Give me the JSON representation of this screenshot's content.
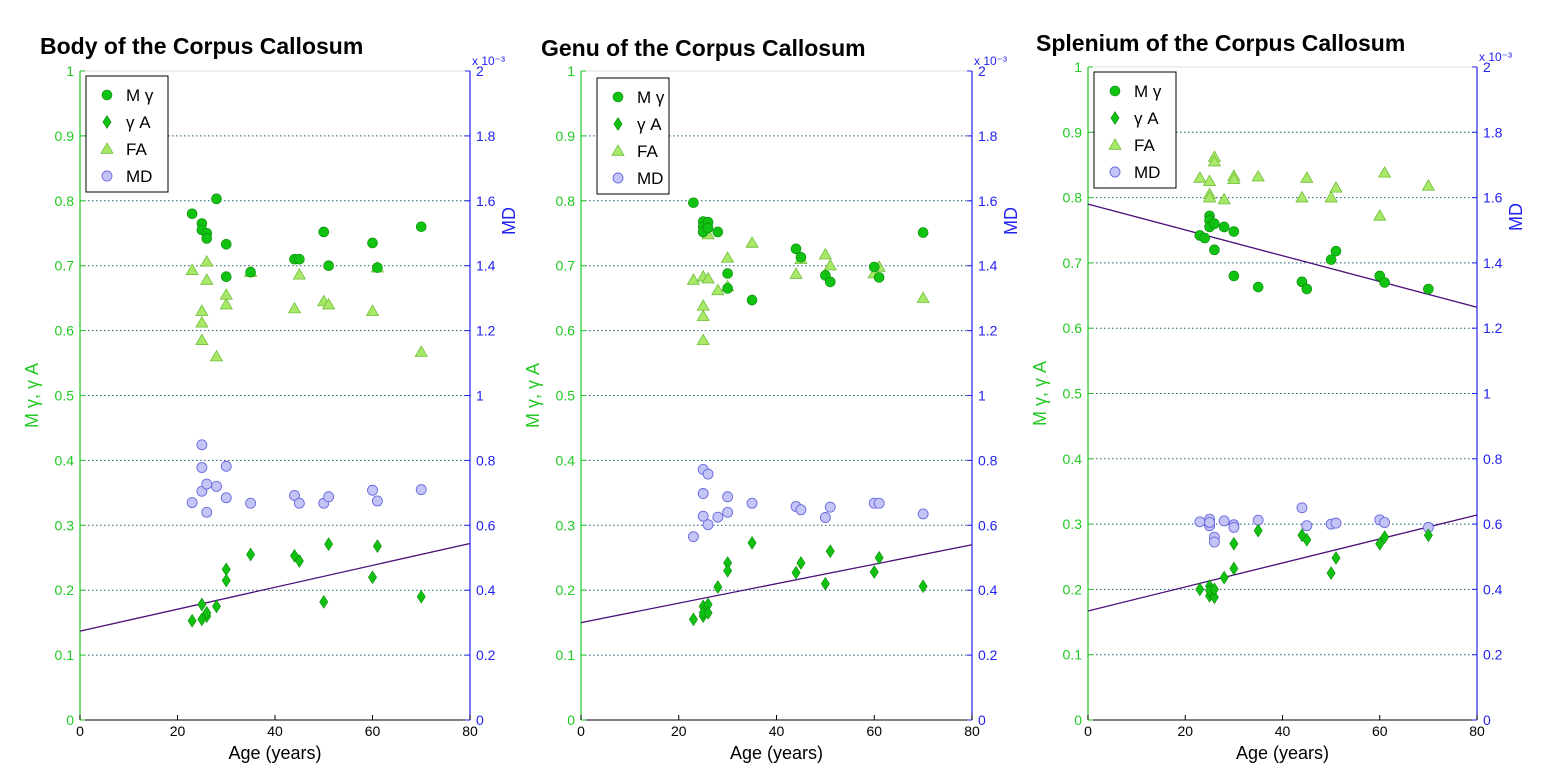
{
  "chart_data": [
    {
      "type": "scatter",
      "title": "Body of the Corpus Callosum",
      "xlabel": "Age (years)",
      "ylabel": "M γ, γ A",
      "ylabel_right": "MD",
      "right_exponent": "x 10⁻³",
      "xlim": [
        0,
        80
      ],
      "ylim": [
        0,
        1
      ],
      "ylim_right": [
        0,
        2
      ],
      "xticks": [
        "0",
        "20",
        "40",
        "60",
        "80"
      ],
      "yticks": [
        "0",
        "0.1",
        "0.2",
        "0.3",
        "0.4",
        "0.5",
        "0.6",
        "0.7",
        "0.8",
        "0.9",
        "1"
      ],
      "yticks_right": [
        "0",
        "0.2",
        "0.4",
        "0.6",
        "0.8",
        "1",
        "1.2",
        "1.4",
        "1.6",
        "1.8",
        "2"
      ],
      "grid": "horizontal-dotted",
      "legend_position": "top-left",
      "legend": [
        "M γ",
        "γ A",
        "FA",
        "MD"
      ],
      "series": [
        {
          "name": "M γ",
          "marker": "circle",
          "axis": "left",
          "color": "#12c212",
          "x": [
            23,
            25,
            25,
            26,
            26,
            28,
            30,
            30,
            35,
            44,
            45,
            50,
            51,
            60,
            61,
            70
          ],
          "y": [
            0.78,
            0.765,
            0.755,
            0.75,
            0.742,
            0.803,
            0.733,
            0.683,
            0.69,
            0.71,
            0.71,
            0.752,
            0.7,
            0.735,
            0.697,
            0.76
          ]
        },
        {
          "name": "γ A",
          "marker": "diamond",
          "axis": "left",
          "color": "#12c212",
          "x": [
            23,
            25,
            25,
            26,
            26,
            28,
            30,
            30,
            35,
            44,
            45,
            50,
            51,
            60,
            61,
            70
          ],
          "y": [
            0.153,
            0.178,
            0.155,
            0.16,
            0.165,
            0.175,
            0.232,
            0.215,
            0.255,
            0.253,
            0.245,
            0.182,
            0.271,
            0.22,
            0.268,
            0.19
          ]
        },
        {
          "name": "FA",
          "marker": "triangle",
          "axis": "left",
          "color": "#a8e868",
          "x": [
            23,
            25,
            25,
            25,
            26,
            26,
            28,
            30,
            30,
            35,
            44,
            45,
            50,
            51,
            60,
            61,
            70
          ],
          "y": [
            0.693,
            0.63,
            0.612,
            0.585,
            0.706,
            0.678,
            0.56,
            0.655,
            0.64,
            0.69,
            0.634,
            0.686,
            0.645,
            0.64,
            0.63,
            0.697,
            0.567
          ]
        },
        {
          "name": "MD",
          "marker": "circle-open",
          "axis": "right",
          "color": "#9090f0",
          "x": [
            23,
            25,
            25,
            25,
            26,
            26,
            28,
            30,
            30,
            35,
            44,
            45,
            50,
            51,
            60,
            61,
            70
          ],
          "y": [
            0.67,
            0.848,
            0.778,
            0.705,
            0.727,
            0.64,
            0.72,
            0.782,
            0.685,
            0.668,
            0.692,
            0.668,
            0.668,
            0.688,
            0.708,
            0.675,
            0.71
          ]
        }
      ],
      "fit_lines": [
        {
          "series": "γ A",
          "x": [
            0,
            80
          ],
          "y": [
            0.137,
            0.272
          ]
        }
      ]
    },
    {
      "type": "scatter",
      "title": "Genu of the Corpus Callosum",
      "xlabel": "Age (years)",
      "ylabel": "M γ, γ A",
      "ylabel_right": "MD",
      "right_exponent": "x 10⁻³",
      "xlim": [
        0,
        80
      ],
      "ylim": [
        0,
        1
      ],
      "ylim_right": [
        0,
        2
      ],
      "xticks": [
        "0",
        "20",
        "40",
        "60",
        "80"
      ],
      "yticks": [
        "0",
        "0.1",
        "0.2",
        "0.3",
        "0.4",
        "0.5",
        "0.6",
        "0.7",
        "0.8",
        "0.9",
        "1"
      ],
      "yticks_right": [
        "0",
        "0.2",
        "0.4",
        "0.6",
        "0.8",
        "1",
        "1.2",
        "1.4",
        "1.6",
        "1.8",
        "2"
      ],
      "grid": "horizontal-dotted",
      "legend_position": "top-right",
      "legend": [
        "M γ",
        "γ A",
        "FA",
        "MD"
      ],
      "series": [
        {
          "name": "M γ",
          "marker": "circle",
          "axis": "left",
          "color": "#12c212",
          "x": [
            23,
            25,
            25,
            25,
            26,
            26,
            28,
            30,
            30,
            35,
            44,
            45,
            50,
            51,
            60,
            61,
            70
          ],
          "y": [
            0.797,
            0.768,
            0.76,
            0.752,
            0.767,
            0.758,
            0.752,
            0.688,
            0.665,
            0.647,
            0.726,
            0.713,
            0.685,
            0.675,
            0.698,
            0.682,
            0.751
          ]
        },
        {
          "name": "γ A",
          "marker": "diamond",
          "axis": "left",
          "color": "#12c212",
          "x": [
            23,
            25,
            25,
            25,
            26,
            26,
            28,
            30,
            30,
            35,
            44,
            45,
            50,
            51,
            60,
            61,
            70
          ],
          "y": [
            0.155,
            0.175,
            0.16,
            0.165,
            0.178,
            0.165,
            0.205,
            0.242,
            0.23,
            0.273,
            0.227,
            0.242,
            0.21,
            0.26,
            0.228,
            0.25,
            0.206
          ]
        },
        {
          "name": "FA",
          "marker": "triangle",
          "axis": "left",
          "color": "#a8e868",
          "x": [
            23,
            25,
            25,
            25,
            25,
            26,
            26,
            28,
            30,
            30,
            35,
            44,
            45,
            50,
            51,
            60,
            61,
            70
          ],
          "y": [
            0.678,
            0.683,
            0.638,
            0.622,
            0.585,
            0.748,
            0.68,
            0.662,
            0.712,
            0.668,
            0.735,
            0.687,
            0.71,
            0.717,
            0.7,
            0.688,
            0.698,
            0.65
          ]
        },
        {
          "name": "MD",
          "marker": "circle-open",
          "axis": "right",
          "color": "#9090f0",
          "x": [
            23,
            25,
            25,
            25,
            26,
            26,
            28,
            30,
            30,
            35,
            44,
            45,
            50,
            51,
            60,
            61,
            70
          ],
          "y": [
            0.565,
            0.772,
            0.698,
            0.628,
            0.758,
            0.602,
            0.625,
            0.688,
            0.64,
            0.668,
            0.658,
            0.648,
            0.624,
            0.656,
            0.668,
            0.668,
            0.635
          ]
        }
      ],
      "fit_lines": [
        {
          "series": "γ A",
          "x": [
            0,
            80
          ],
          "y": [
            0.15,
            0.27
          ]
        }
      ]
    },
    {
      "type": "scatter",
      "title": "Splenium of the Corpus Callosum",
      "xlabel": "Age (years)",
      "ylabel": "M γ, γ A",
      "ylabel_right": "MD",
      "right_exponent": "x 10⁻³",
      "xlim": [
        0,
        80
      ],
      "ylim": [
        0,
        1
      ],
      "ylim_right": [
        0,
        2
      ],
      "xticks": [
        "0",
        "20",
        "40",
        "60",
        "80"
      ],
      "yticks": [
        "0",
        "0.1",
        "0.2",
        "0.3",
        "0.4",
        "0.5",
        "0.6",
        "0.7",
        "0.8",
        "0.9",
        "1"
      ],
      "yticks_right": [
        "0",
        "0.2",
        "0.4",
        "0.6",
        "0.8",
        "1",
        "1.2",
        "1.4",
        "1.6",
        "1.8",
        "2"
      ],
      "grid": "horizontal-dotted",
      "legend_position": "top-left",
      "legend": [
        "M γ",
        "γ A",
        "FA",
        "MD"
      ],
      "series": [
        {
          "name": "M γ",
          "marker": "circle",
          "axis": "left",
          "color": "#12c212",
          "x": [
            23,
            24,
            25,
            25,
            25,
            26,
            26,
            28,
            30,
            30,
            35,
            44,
            45,
            50,
            51,
            60,
            61,
            70
          ],
          "y": [
            0.742,
            0.738,
            0.772,
            0.765,
            0.755,
            0.72,
            0.76,
            0.755,
            0.748,
            0.68,
            0.663,
            0.671,
            0.66,
            0.705,
            0.718,
            0.68,
            0.67,
            0.66
          ]
        },
        {
          "name": "γ A",
          "marker": "diamond",
          "axis": "left",
          "color": "#12c212",
          "x": [
            23,
            25,
            25,
            25,
            26,
            26,
            28,
            30,
            30,
            35,
            44,
            45,
            50,
            51,
            60,
            61,
            70
          ],
          "y": [
            0.2,
            0.205,
            0.19,
            0.198,
            0.188,
            0.2,
            0.218,
            0.27,
            0.232,
            0.29,
            0.283,
            0.276,
            0.225,
            0.248,
            0.27,
            0.28,
            0.283
          ]
        },
        {
          "name": "FA",
          "marker": "triangle",
          "axis": "left",
          "color": "#a8e868",
          "x": [
            23,
            25,
            25,
            25,
            26,
            26,
            28,
            30,
            30,
            35,
            44,
            45,
            50,
            51,
            60,
            61,
            70
          ],
          "y": [
            0.83,
            0.825,
            0.805,
            0.8,
            0.862,
            0.855,
            0.797,
            0.833,
            0.828,
            0.832,
            0.8,
            0.83,
            0.8,
            0.815,
            0.772,
            0.838,
            0.818
          ]
        },
        {
          "name": "MD",
          "marker": "circle-open",
          "axis": "right",
          "color": "#9090f0",
          "x": [
            23,
            25,
            25,
            25,
            26,
            26,
            28,
            30,
            30,
            35,
            44,
            45,
            50,
            51,
            60,
            61,
            70
          ],
          "y": [
            0.607,
            0.615,
            0.595,
            0.605,
            0.56,
            0.545,
            0.61,
            0.598,
            0.59,
            0.612,
            0.65,
            0.595,
            0.6,
            0.603,
            0.613,
            0.605,
            0.59
          ]
        }
      ],
      "fit_lines": [
        {
          "series": "M γ",
          "x": [
            0,
            80
          ],
          "y": [
            0.79,
            0.632
          ]
        },
        {
          "series": "γ A",
          "x": [
            0,
            80
          ],
          "y": [
            0.167,
            0.314
          ]
        }
      ]
    }
  ]
}
